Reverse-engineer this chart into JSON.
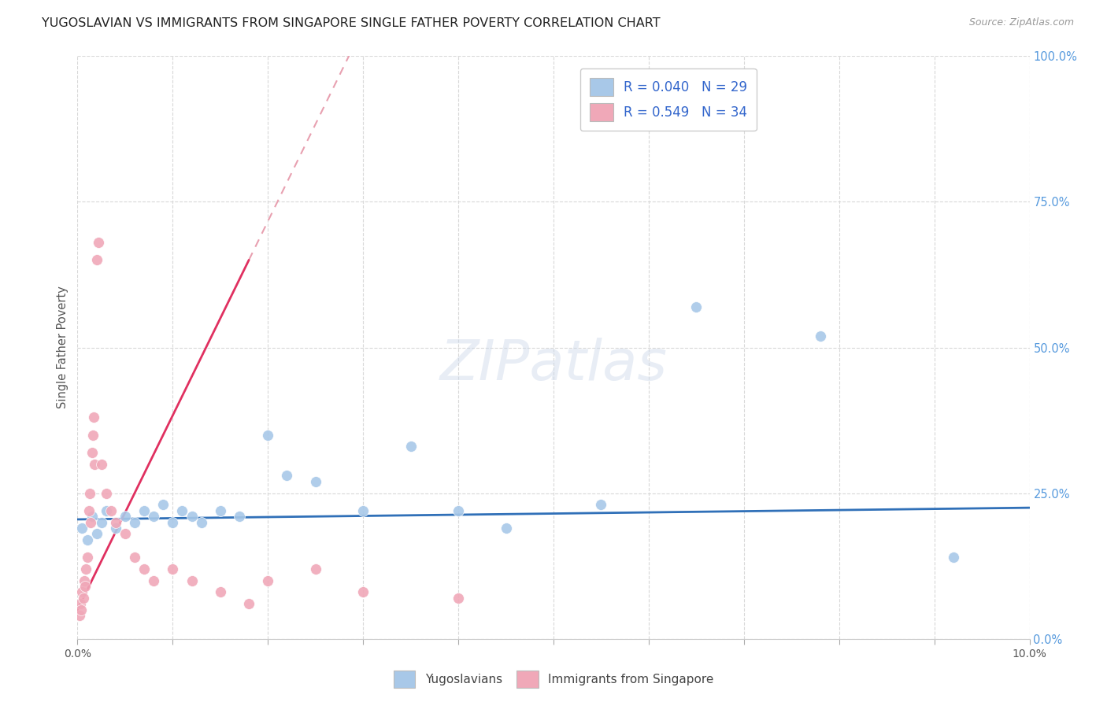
{
  "title": "YUGOSLAVIAN VS IMMIGRANTS FROM SINGAPORE SINGLE FATHER POVERTY CORRELATION CHART",
  "source": "Source: ZipAtlas.com",
  "ylabel": "Single Father Poverty",
  "legend_label1": "Yugoslavians",
  "legend_label2": "Immigrants from Singapore",
  "R1": 0.04,
  "N1": 29,
  "R2": 0.549,
  "N2": 34,
  "blue_color": "#a8c8e8",
  "pink_color": "#f0a8b8",
  "blue_line_color": "#3070b8",
  "pink_line_color": "#e03060",
  "pink_dash_color": "#e8a0b0",
  "yugoslavian_x": [
    0.0005,
    0.001,
    0.0015,
    0.002,
    0.0025,
    0.003,
    0.004,
    0.005,
    0.006,
    0.007,
    0.008,
    0.009,
    0.01,
    0.011,
    0.012,
    0.013,
    0.015,
    0.017,
    0.02,
    0.022,
    0.025,
    0.03,
    0.035,
    0.04,
    0.045,
    0.055,
    0.065,
    0.078,
    0.092
  ],
  "yugoslavian_y": [
    0.19,
    0.17,
    0.21,
    0.18,
    0.2,
    0.22,
    0.19,
    0.21,
    0.2,
    0.22,
    0.21,
    0.23,
    0.2,
    0.22,
    0.21,
    0.2,
    0.22,
    0.21,
    0.35,
    0.28,
    0.27,
    0.22,
    0.33,
    0.22,
    0.19,
    0.23,
    0.57,
    0.52,
    0.14
  ],
  "singapore_x": [
    0.0002,
    0.0003,
    0.0004,
    0.0005,
    0.0006,
    0.0007,
    0.0008,
    0.0009,
    0.001,
    0.0012,
    0.0013,
    0.0014,
    0.0015,
    0.0016,
    0.0017,
    0.0018,
    0.002,
    0.0022,
    0.0025,
    0.003,
    0.0035,
    0.004,
    0.005,
    0.006,
    0.007,
    0.008,
    0.01,
    0.012,
    0.015,
    0.018,
    0.02,
    0.025,
    0.03,
    0.04
  ],
  "singapore_y": [
    0.04,
    0.06,
    0.05,
    0.08,
    0.07,
    0.1,
    0.09,
    0.12,
    0.14,
    0.22,
    0.25,
    0.2,
    0.32,
    0.35,
    0.38,
    0.3,
    0.65,
    0.68,
    0.3,
    0.25,
    0.22,
    0.2,
    0.18,
    0.14,
    0.12,
    0.1,
    0.12,
    0.1,
    0.08,
    0.06,
    0.1,
    0.12,
    0.08,
    0.07
  ],
  "xlim": [
    0.0,
    0.1
  ],
  "ylim": [
    0.0,
    1.0
  ],
  "yticks": [
    0.0,
    0.25,
    0.5,
    0.75,
    1.0
  ],
  "ytick_labels": [
    "0.0%",
    "25.0%",
    "50.0%",
    "75.0%",
    "100.0%"
  ]
}
